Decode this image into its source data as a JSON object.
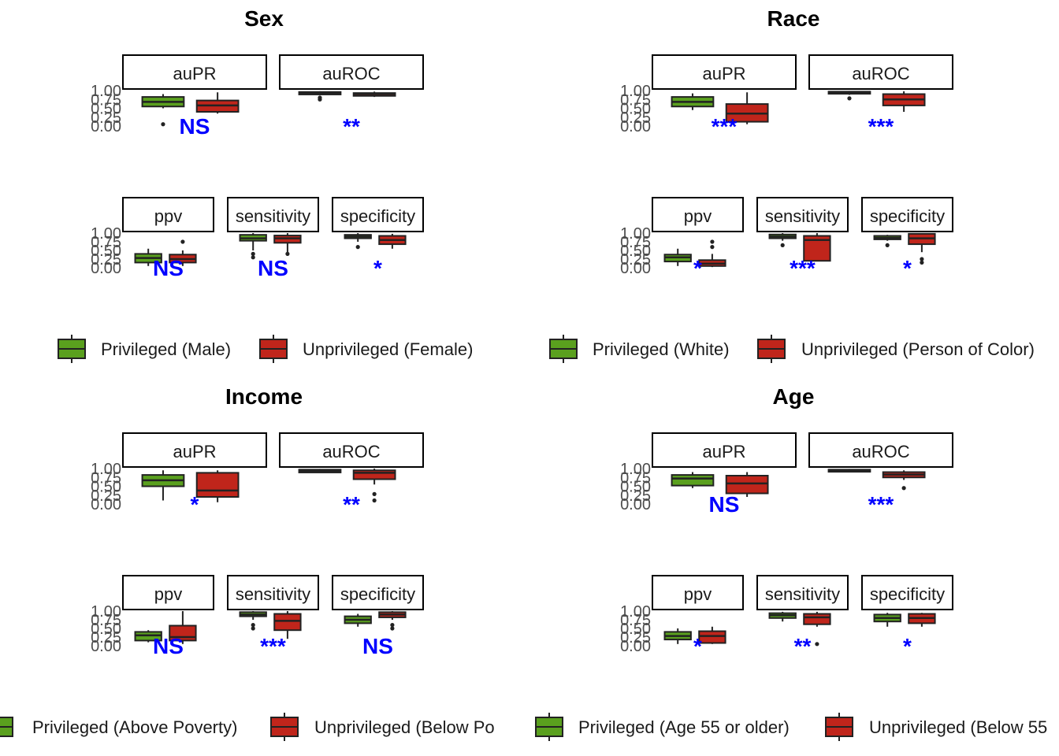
{
  "colors": {
    "privileged": "#5aa01e",
    "unprivileged": "#c0251b",
    "significance": "#0000ff",
    "outline": "#222222",
    "strip_border": "#000000"
  },
  "y_tick_labels": [
    "1.00",
    "0.75",
    "0.50",
    "0.25",
    "0.00"
  ],
  "chart_data": [
    {
      "type": "boxplot",
      "title": "Sex",
      "ylim": [
        0,
        1
      ],
      "legend": {
        "position": "bottom",
        "entries": [
          {
            "group": "privileged",
            "label": "Privileged (Male)"
          },
          {
            "group": "unprivileged",
            "label": "Unprivileged (Female)"
          }
        ]
      },
      "facets": [
        {
          "metric": "auPR",
          "significance": "NS",
          "boxes": [
            {
              "group": "privileged",
              "whisker_low": 0.5,
              "q1": 0.55,
              "median": 0.68,
              "q3": 0.82,
              "whisker_high": 0.9,
              "outliers": [
                0.05
              ]
            },
            {
              "group": "unprivileged",
              "whisker_low": 0.35,
              "q1": 0.4,
              "median": 0.58,
              "q3": 0.72,
              "whisker_high": 0.95,
              "outliers": []
            }
          ]
        },
        {
          "metric": "auROC",
          "significance": "**",
          "boxes": [
            {
              "group": "privileged",
              "whisker_low": 0.87,
              "q1": 0.89,
              "median": 0.93,
              "q3": 0.96,
              "whisker_high": 0.98,
              "outliers": [
                0.75,
                0.8
              ]
            },
            {
              "group": "unprivileged",
              "whisker_low": 0.82,
              "q1": 0.85,
              "median": 0.9,
              "q3": 0.93,
              "whisker_high": 0.97,
              "outliers": []
            }
          ]
        },
        {
          "metric": "ppv",
          "significance": "NS",
          "boxes": [
            {
              "group": "privileged",
              "whisker_low": 0.05,
              "q1": 0.15,
              "median": 0.28,
              "q3": 0.4,
              "whisker_high": 0.55,
              "outliers": []
            },
            {
              "group": "unprivileged",
              "whisker_low": 0.05,
              "q1": 0.15,
              "median": 0.25,
              "q3": 0.38,
              "whisker_high": 0.5,
              "outliers": [
                0.75
              ]
            }
          ]
        },
        {
          "metric": "sensitivity",
          "significance": "NS",
          "boxes": [
            {
              "group": "privileged",
              "whisker_low": 0.5,
              "q1": 0.78,
              "median": 0.85,
              "q3": 0.95,
              "whisker_high": 1.0,
              "outliers": [
                0.3,
                0.4
              ]
            },
            {
              "group": "unprivileged",
              "whisker_low": 0.45,
              "q1": 0.72,
              "median": 0.85,
              "q3": 0.93,
              "whisker_high": 1.0,
              "outliers": [
                0.4
              ]
            }
          ]
        },
        {
          "metric": "specificity",
          "significance": "*",
          "boxes": [
            {
              "group": "privileged",
              "whisker_low": 0.75,
              "q1": 0.85,
              "median": 0.9,
              "q3": 0.95,
              "whisker_high": 1.0,
              "outliers": [
                0.6
              ]
            },
            {
              "group": "unprivileged",
              "whisker_low": 0.55,
              "q1": 0.68,
              "median": 0.8,
              "q3": 0.92,
              "whisker_high": 0.98,
              "outliers": []
            }
          ]
        }
      ]
    },
    {
      "type": "boxplot",
      "title": "Race",
      "ylim": [
        0,
        1
      ],
      "legend": {
        "position": "bottom",
        "entries": [
          {
            "group": "privileged",
            "label": "Privileged (White)"
          },
          {
            "group": "unprivileged",
            "label": "Unprivileged (Person of Color)"
          }
        ]
      },
      "facets": [
        {
          "metric": "auPR",
          "significance": "***",
          "boxes": [
            {
              "group": "privileged",
              "whisker_low": 0.45,
              "q1": 0.55,
              "median": 0.68,
              "q3": 0.82,
              "whisker_high": 0.92,
              "outliers": []
            },
            {
              "group": "unprivileged",
              "whisker_low": 0.05,
              "q1": 0.12,
              "median": 0.35,
              "q3": 0.62,
              "whisker_high": 0.95,
              "outliers": []
            }
          ]
        },
        {
          "metric": "auROC",
          "significance": "***",
          "boxes": [
            {
              "group": "privileged",
              "whisker_low": 0.88,
              "q1": 0.91,
              "median": 0.94,
              "q3": 0.97,
              "whisker_high": 0.99,
              "outliers": [
                0.78
              ]
            },
            {
              "group": "unprivileged",
              "whisker_low": 0.4,
              "q1": 0.58,
              "median": 0.75,
              "q3": 0.9,
              "whisker_high": 0.98,
              "outliers": []
            }
          ]
        },
        {
          "metric": "ppv",
          "significance": "*",
          "boxes": [
            {
              "group": "privileged",
              "whisker_low": 0.05,
              "q1": 0.18,
              "median": 0.3,
              "q3": 0.38,
              "whisker_high": 0.55,
              "outliers": []
            },
            {
              "group": "unprivileged",
              "whisker_low": 0.02,
              "q1": 0.05,
              "median": 0.12,
              "q3": 0.22,
              "whisker_high": 0.4,
              "outliers": [
                0.6,
                0.75
              ]
            }
          ]
        },
        {
          "metric": "sensitivity",
          "significance": "***",
          "boxes": [
            {
              "group": "privileged",
              "whisker_low": 0.78,
              "q1": 0.85,
              "median": 0.9,
              "q3": 0.96,
              "whisker_high": 1.0,
              "outliers": [
                0.65
              ]
            },
            {
              "group": "unprivileged",
              "whisker_low": 0.2,
              "q1": 0.2,
              "median": 0.8,
              "q3": 0.92,
              "whisker_high": 1.0,
              "outliers": []
            }
          ]
        },
        {
          "metric": "specificity",
          "significance": "*",
          "boxes": [
            {
              "group": "privileged",
              "whisker_low": 0.78,
              "q1": 0.82,
              "median": 0.86,
              "q3": 0.92,
              "whisker_high": 0.95,
              "outliers": [
                0.65
              ]
            },
            {
              "group": "unprivileged",
              "whisker_low": 0.45,
              "q1": 0.68,
              "median": 0.85,
              "q3": 0.98,
              "whisker_high": 1.0,
              "outliers": [
                0.15,
                0.25
              ]
            }
          ]
        }
      ]
    },
    {
      "type": "boxplot",
      "title": "Income",
      "ylim": [
        0,
        1
      ],
      "legend": {
        "position": "bottom",
        "entries": [
          {
            "group": "privileged",
            "label": "Privileged (Above Poverty)"
          },
          {
            "group": "unprivileged",
            "label": "Unprivileged (Below Po"
          }
        ]
      },
      "facets": [
        {
          "metric": "auPR",
          "significance": "*",
          "boxes": [
            {
              "group": "privileged",
              "whisker_low": 0.1,
              "q1": 0.5,
              "median": 0.67,
              "q3": 0.82,
              "whisker_high": 0.95,
              "outliers": []
            },
            {
              "group": "unprivileged",
              "whisker_low": 0.05,
              "q1": 0.2,
              "median": 0.38,
              "q3": 0.88,
              "whisker_high": 0.95,
              "outliers": []
            }
          ]
        },
        {
          "metric": "auROC",
          "significance": "**",
          "boxes": [
            {
              "group": "privileged",
              "whisker_low": 0.88,
              "q1": 0.89,
              "median": 0.94,
              "q3": 0.97,
              "whisker_high": 0.99,
              "outliers": []
            },
            {
              "group": "unprivileged",
              "whisker_low": 0.55,
              "q1": 0.7,
              "median": 0.88,
              "q3": 0.95,
              "whisker_high": 1.0,
              "outliers": [
                0.1,
                0.28
              ]
            }
          ]
        },
        {
          "metric": "ppv",
          "significance": "NS",
          "boxes": [
            {
              "group": "privileged",
              "whisker_low": 0.1,
              "q1": 0.15,
              "median": 0.3,
              "q3": 0.4,
              "whisker_high": 0.45,
              "outliers": []
            },
            {
              "group": "unprivileged",
              "whisker_low": 0.05,
              "q1": 0.15,
              "median": 0.25,
              "q3": 0.58,
              "whisker_high": 1.0,
              "outliers": []
            }
          ]
        },
        {
          "metric": "sensitivity",
          "significance": "***",
          "boxes": [
            {
              "group": "privileged",
              "whisker_low": 0.75,
              "q1": 0.85,
              "median": 0.9,
              "q3": 0.97,
              "whisker_high": 1.0,
              "outliers": [
                0.5,
                0.6
              ]
            },
            {
              "group": "unprivileged",
              "whisker_low": 0.2,
              "q1": 0.45,
              "median": 0.72,
              "q3": 0.92,
              "whisker_high": 1.0,
              "outliers": []
            }
          ]
        },
        {
          "metric": "specificity",
          "significance": "NS",
          "boxes": [
            {
              "group": "privileged",
              "whisker_low": 0.55,
              "q1": 0.65,
              "median": 0.75,
              "q3": 0.85,
              "whisker_high": 0.92,
              "outliers": []
            },
            {
              "group": "unprivileged",
              "whisker_low": 0.75,
              "q1": 0.82,
              "median": 0.9,
              "q3": 0.97,
              "whisker_high": 1.0,
              "outliers": [
                0.5,
                0.6
              ]
            }
          ]
        }
      ]
    },
    {
      "type": "boxplot",
      "title": "Age",
      "ylim": [
        0,
        1
      ],
      "legend": {
        "position": "bottom",
        "entries": [
          {
            "group": "privileged",
            "label": "Privileged (Age 55 or older)"
          },
          {
            "group": "unprivileged",
            "label": "Unprivileged (Below 55"
          }
        ]
      },
      "facets": [
        {
          "metric": "auPR",
          "significance": "NS",
          "boxes": [
            {
              "group": "privileged",
              "whisker_low": 0.45,
              "q1": 0.52,
              "median": 0.72,
              "q3": 0.82,
              "whisker_high": 0.9,
              "outliers": []
            },
            {
              "group": "unprivileged",
              "whisker_low": 0.2,
              "q1": 0.3,
              "median": 0.58,
              "q3": 0.8,
              "whisker_high": 0.9,
              "outliers": []
            }
          ]
        },
        {
          "metric": "auROC",
          "significance": "***",
          "boxes": [
            {
              "group": "privileged",
              "whisker_low": 0.9,
              "q1": 0.91,
              "median": 0.94,
              "q3": 0.97,
              "whisker_high": 0.99,
              "outliers": []
            },
            {
              "group": "unprivileged",
              "whisker_low": 0.68,
              "q1": 0.75,
              "median": 0.83,
              "q3": 0.9,
              "whisker_high": 0.95,
              "outliers": [
                0.45
              ]
            }
          ]
        },
        {
          "metric": "ppv",
          "significance": "*",
          "boxes": [
            {
              "group": "privileged",
              "whisker_low": 0.05,
              "q1": 0.18,
              "median": 0.28,
              "q3": 0.4,
              "whisker_high": 0.5,
              "outliers": []
            },
            {
              "group": "unprivileged",
              "whisker_low": 0.05,
              "q1": 0.08,
              "median": 0.28,
              "q3": 0.42,
              "whisker_high": 0.55,
              "outliers": []
            }
          ]
        },
        {
          "metric": "sensitivity",
          "significance": "**",
          "boxes": [
            {
              "group": "privileged",
              "whisker_low": 0.7,
              "q1": 0.8,
              "median": 0.88,
              "q3": 0.94,
              "whisker_high": 0.98,
              "outliers": []
            },
            {
              "group": "unprivileged",
              "whisker_low": 0.55,
              "q1": 0.62,
              "median": 0.82,
              "q3": 0.92,
              "whisker_high": 0.98,
              "outliers": [
                0.05
              ]
            }
          ]
        },
        {
          "metric": "specificity",
          "significance": "*",
          "boxes": [
            {
              "group": "privileged",
              "whisker_low": 0.55,
              "q1": 0.7,
              "median": 0.8,
              "q3": 0.9,
              "whisker_high": 0.95,
              "outliers": []
            },
            {
              "group": "unprivileged",
              "whisker_low": 0.55,
              "q1": 0.65,
              "median": 0.8,
              "q3": 0.92,
              "whisker_high": 0.95,
              "outliers": []
            }
          ]
        }
      ]
    }
  ]
}
